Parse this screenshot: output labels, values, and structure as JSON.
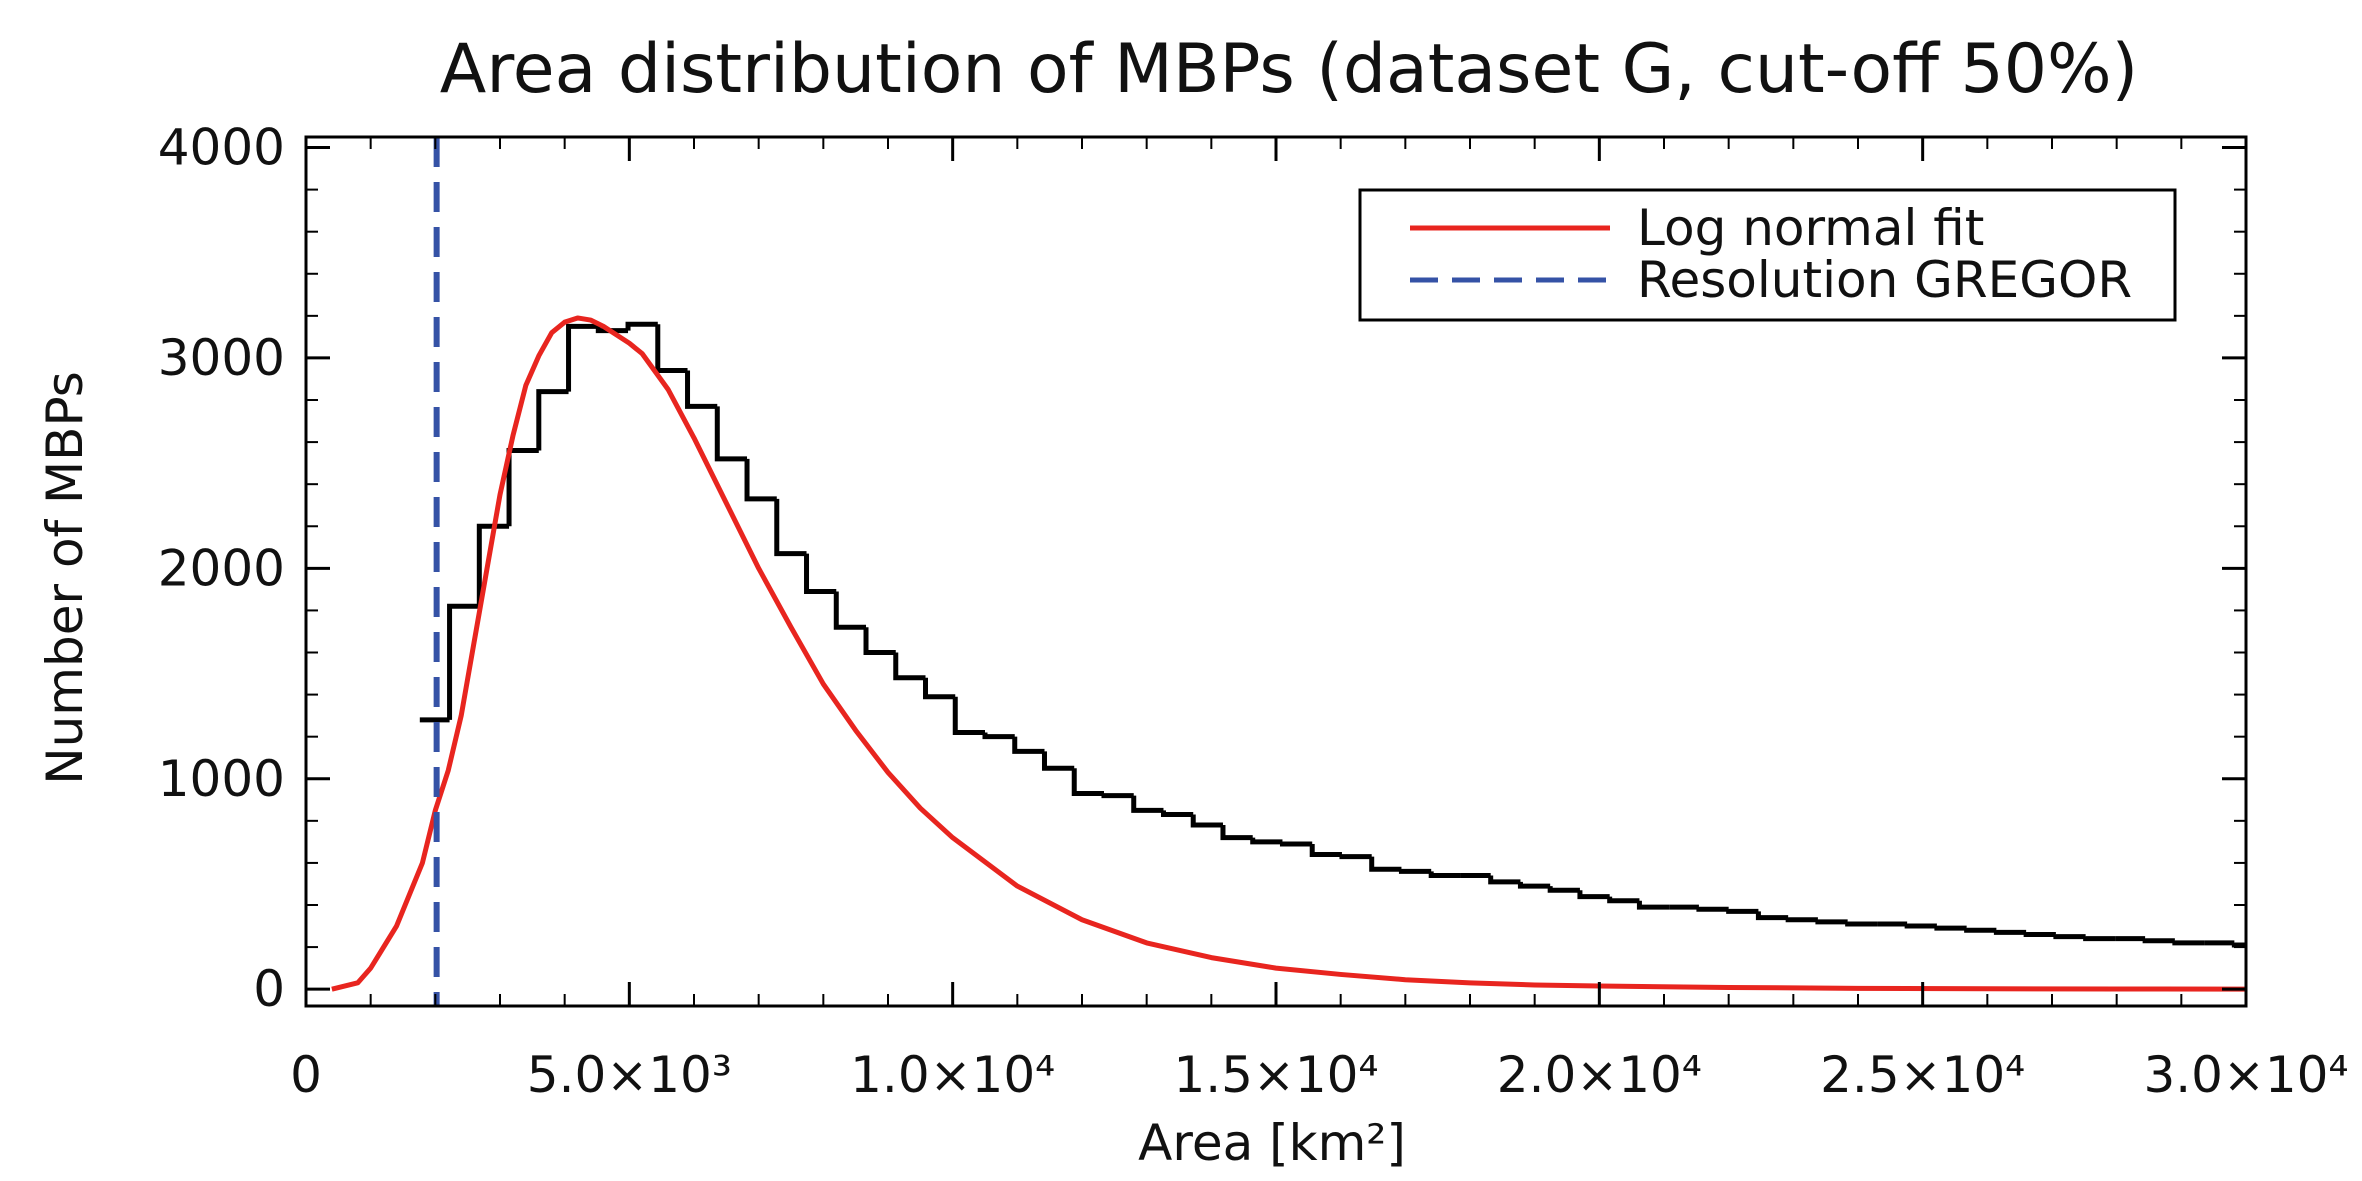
{
  "chart_data": {
    "type": "line",
    "title": "Area distribution of MBPs (dataset G, cut-off 50%)",
    "xlabel": "Area [km²]",
    "ylabel": "Number of MBPs",
    "xlim": [
      0,
      30000
    ],
    "ylim": [
      -80,
      4050
    ],
    "x_ticks": [
      {
        "value": 0,
        "label": "0"
      },
      {
        "value": 5000,
        "label": "5.0×10³"
      },
      {
        "value": 10000,
        "label": "1.0×10⁴"
      },
      {
        "value": 15000,
        "label": "1.5×10⁴"
      },
      {
        "value": 20000,
        "label": "2.0×10⁴"
      },
      {
        "value": 25000,
        "label": "2.5×10⁴"
      },
      {
        "value": 30000,
        "label": "3.0×10⁴"
      }
    ],
    "y_ticks": [
      {
        "value": 0,
        "label": "0"
      },
      {
        "value": 1000,
        "label": "1000"
      },
      {
        "value": 2000,
        "label": "2000"
      },
      {
        "value": 3000,
        "label": "3000"
      },
      {
        "value": 4000,
        "label": "4000"
      }
    ],
    "histogram": {
      "name": "Histogram",
      "color": "#000000",
      "bin_width": 460,
      "first_bin_start": 1760,
      "counts": [
        1280,
        1820,
        2200,
        2560,
        2840,
        3150,
        3130,
        3160,
        2940,
        2770,
        2520,
        2330,
        2070,
        1890,
        1720,
        1600,
        1480,
        1390,
        1220,
        1200,
        1130,
        1050,
        930,
        920,
        850,
        830,
        780,
        720,
        700,
        690,
        640,
        630,
        570,
        560,
        540,
        540,
        510,
        490,
        470,
        440,
        420,
        390,
        390,
        380,
        370,
        340,
        330,
        320,
        310,
        310,
        300,
        290,
        280,
        270,
        260,
        250,
        240,
        240,
        230,
        220,
        220,
        210,
        210,
        200,
        190,
        180,
        170,
        170,
        160,
        160,
        150,
        150
      ]
    },
    "series": [
      {
        "name": "Log normal fit",
        "color": "#e8251f",
        "style": "solid",
        "x": [
          400,
          800,
          1000,
          1400,
          1800,
          2000,
          2200,
          2400,
          2600,
          2800,
          3000,
          3200,
          3400,
          3600,
          3800,
          4000,
          4200,
          4400,
          4600,
          4800,
          5000,
          5200,
          5600,
          6000,
          6500,
          7000,
          7500,
          8000,
          8500,
          9000,
          9500,
          10000,
          11000,
          12000,
          13000,
          14000,
          15000,
          16000,
          17000,
          18000,
          19000,
          20000,
          22000,
          24000,
          26000,
          28000,
          30000
        ],
        "y": [
          0,
          30,
          100,
          300,
          600,
          850,
          1040,
          1300,
          1650,
          2000,
          2350,
          2630,
          2870,
          3010,
          3120,
          3170,
          3190,
          3180,
          3150,
          3110,
          3070,
          3020,
          2850,
          2620,
          2310,
          2000,
          1720,
          1450,
          1230,
          1030,
          860,
          720,
          490,
          330,
          220,
          150,
          100,
          70,
          45,
          30,
          20,
          15,
          8,
          4,
          2,
          1,
          0
        ]
      }
    ],
    "vline": {
      "name": "Resolution GREGOR",
      "x": 2020,
      "color": "#3552a6",
      "style": "dashed"
    },
    "legend": {
      "position": "top-right",
      "entries": [
        {
          "label": "Log normal fit",
          "color": "#e8251f",
          "style": "solid"
        },
        {
          "label": "Resolution GREGOR",
          "color": "#3552a6",
          "style": "dashed"
        }
      ]
    }
  }
}
